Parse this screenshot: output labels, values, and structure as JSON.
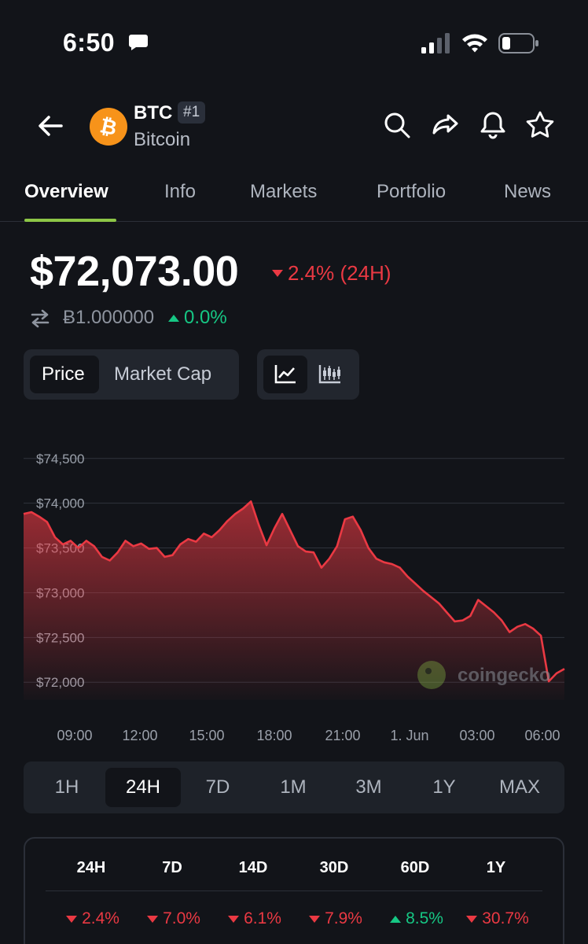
{
  "status_bar": {
    "time": "6:50"
  },
  "header": {
    "symbol": "BTC",
    "rank": "#1",
    "name": "Bitcoin"
  },
  "tabs": [
    {
      "label": "Overview",
      "active": true
    },
    {
      "label": "Info"
    },
    {
      "label": "Markets"
    },
    {
      "label": "Portfolio"
    },
    {
      "label": "News"
    }
  ],
  "price": {
    "usd": "$72,073.00",
    "change_24h": "2.4% (24H)",
    "btc": "Ƀ1.000000",
    "btc_change": "0.0%"
  },
  "chart_toggle": {
    "price_label": "Price",
    "market_cap_label": "Market Cap"
  },
  "colors": {
    "accent": "#8dc647",
    "down": "#ea3943",
    "up": "#16c784",
    "background": "#121419",
    "bitcoin": "#f7931a"
  },
  "chart_data": {
    "type": "area",
    "y_ticks": [
      "$74,500",
      "$74,000",
      "$73,500",
      "$73,000",
      "$72,500",
      "$72,000"
    ],
    "x_ticks": [
      "09:00",
      "12:00",
      "15:00",
      "18:00",
      "21:00",
      "1. Jun",
      "03:00",
      "06:00"
    ],
    "ylim": [
      71800,
      74700
    ],
    "watermark": "coingecko",
    "series": [
      {
        "values": [
          73880,
          73900,
          73850,
          73790,
          73620,
          73540,
          73580,
          73500,
          73580,
          73520,
          73400,
          73360,
          73450,
          73580,
          73520,
          73550,
          73490,
          73500,
          73400,
          73420,
          73540,
          73600,
          73570,
          73660,
          73620,
          73700,
          73800,
          73880,
          73940,
          74020,
          73760,
          73530,
          73720,
          73880,
          73700,
          73520,
          73460,
          73450,
          73280,
          73380,
          73520,
          73820,
          73850,
          73700,
          73500,
          73380,
          73340,
          73320,
          73280,
          73180,
          73100,
          73020,
          72950,
          72880,
          72780,
          72680,
          72690,
          72740,
          72920,
          72850,
          72780,
          72690,
          72560,
          72620,
          72650,
          72600,
          72520,
          72010,
          72100,
          72150
        ]
      }
    ]
  },
  "ranges": [
    {
      "label": "1H"
    },
    {
      "label": "24H",
      "active": true
    },
    {
      "label": "7D"
    },
    {
      "label": "1M"
    },
    {
      "label": "3M"
    },
    {
      "label": "1Y"
    },
    {
      "label": "MAX"
    }
  ],
  "performance": [
    {
      "period": "24H",
      "value": "2.4%",
      "direction": "down"
    },
    {
      "period": "7D",
      "value": "7.0%",
      "direction": "down"
    },
    {
      "period": "14D",
      "value": "6.1%",
      "direction": "down"
    },
    {
      "period": "30D",
      "value": "7.9%",
      "direction": "down"
    },
    {
      "period": "60D",
      "value": "8.5%",
      "direction": "up"
    },
    {
      "period": "1Y",
      "value": "30.7%",
      "direction": "down"
    }
  ]
}
